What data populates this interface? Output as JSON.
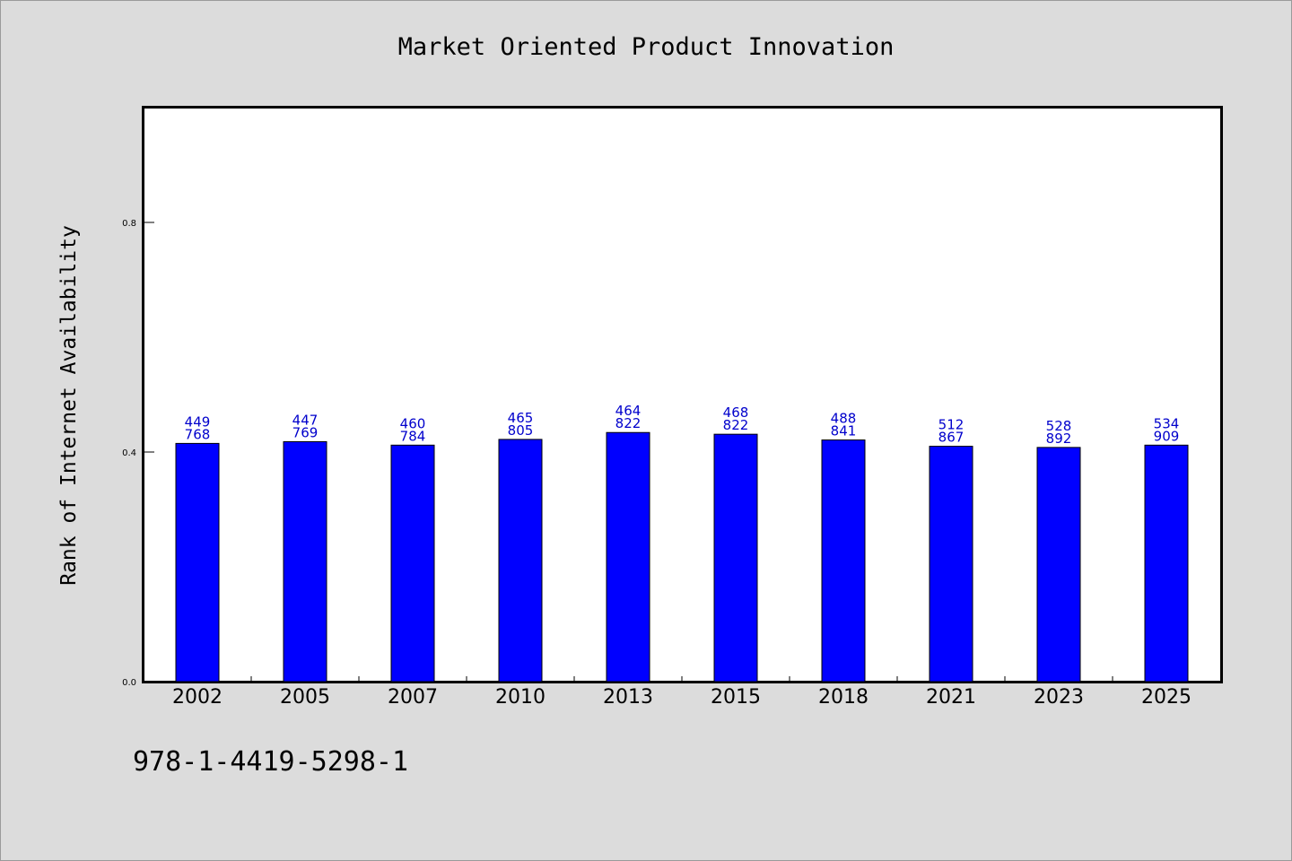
{
  "chart_data": {
    "type": "bar",
    "title": "Market Oriented Product Innovation",
    "xlabel": "",
    "ylabel": "Rank of Internet Availability",
    "ylim": [
      0,
      1.0
    ],
    "yticks": [
      "0.0",
      "0.4",
      "0.8"
    ],
    "grid": false,
    "legend": "none",
    "categories": [
      "2002",
      "2005",
      "2007",
      "2010",
      "2013",
      "2015",
      "2018",
      "2021",
      "2023",
      "2025"
    ],
    "series": [
      {
        "values": [
          0.415,
          0.418,
          0.412,
          0.422,
          0.434,
          0.431,
          0.421,
          0.41,
          0.408,
          0.412
        ],
        "color": "#0000ff"
      }
    ],
    "data_labels": [
      [
        "449",
        "768"
      ],
      [
        "447",
        "769"
      ],
      [
        "460",
        "784"
      ],
      [
        "465",
        "805"
      ],
      [
        "464",
        "822"
      ],
      [
        "468",
        "822"
      ],
      [
        "488",
        "841"
      ],
      [
        "512",
        "867"
      ],
      [
        "528",
        "892"
      ],
      [
        "534",
        "909"
      ]
    ],
    "label_color": "#0000cc",
    "annotation": "978-1-4419-5298-1"
  }
}
